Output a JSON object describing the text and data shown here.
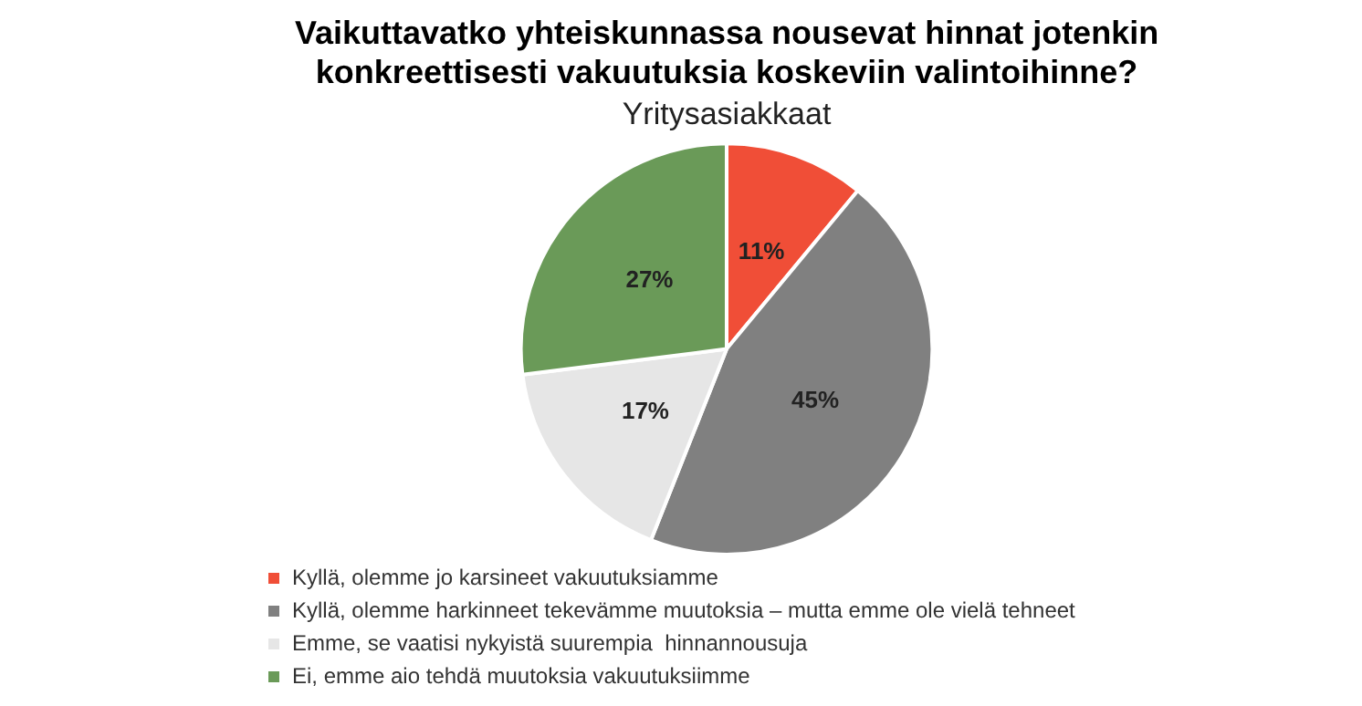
{
  "chart_data": {
    "type": "pie",
    "title": "Vaikuttavatko yhteiskunnassa nousevat hinnat jotenkin konkreettisesti vakuutuksia koskeviin valintoihinne?",
    "subtitle": "Yritysasiakkaat",
    "categories": [
      "Kyllä, olemme jo karsineet vakuutuksiamme",
      "Kyllä, olemme harkinneet tekevämme muutoksia – mutta emme ole vielä tehneet",
      "Emme, se vaatisi nykyistä suurempia  hinnannousuja",
      "Ei, emme aio tehdä muutoksia vakuutuksiimme"
    ],
    "values": [
      11,
      45,
      17,
      27
    ],
    "value_labels": [
      "11%",
      "45%",
      "17%",
      "27%"
    ],
    "colors": [
      "#f04e37",
      "#808080",
      "#e6e6e6",
      "#6a9a58"
    ],
    "legend": "bottom"
  }
}
